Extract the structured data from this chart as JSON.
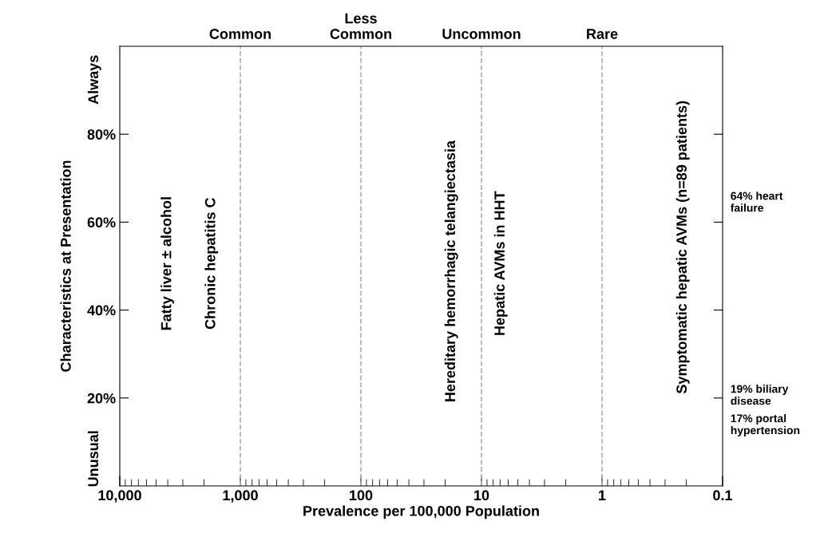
{
  "chart_data": {
    "type": "scatter",
    "xlabel": "Prevalence per 100,000 Population",
    "ylabel": "Characteristics at Presentation",
    "log": "x",
    "xlim": [
      10000,
      0.1
    ],
    "xticks": [
      {
        "value": 10000,
        "label": "10,000"
      },
      {
        "value": 1000,
        "label": "1,000"
      },
      100,
      10,
      1,
      0.1
    ],
    "ylim": [
      0,
      100
    ],
    "yticks": [
      {
        "value": 20,
        "label": "20%"
      },
      {
        "value": 40,
        "label": "40%"
      },
      {
        "value": 60,
        "label": "60%"
      },
      {
        "value": 80,
        "label": "80%"
      }
    ],
    "ref_lines": [
      {
        "axis": "x",
        "value": 1000,
        "label": "Common",
        "color": "#b0b0b0",
        "line_style": "dashed"
      },
      {
        "axis": "x",
        "value": 100,
        "label": "Less\nCommon",
        "color": "#b0b0b0",
        "line_style": "dashed"
      },
      {
        "axis": "x",
        "value": 10,
        "label": "Uncommon",
        "color": "#b0b0b0",
        "line_style": "dashed"
      },
      {
        "axis": "x",
        "value": 1,
        "label": "Rare",
        "color": "#b0b0b0",
        "line_style": "dashed"
      }
    ],
    "annotations": [
      "Always",
      "Unusual",
      "Fatty liver ± alcohol",
      "Chronic hepatitis C",
      "Hereditary hemorrhagic telangiectasia",
      "Hepatic AVMs in HHT",
      "Symptomatic hepatic AVMs (n=89 patients)",
      "64% heart\nfailure",
      "19% biliary\ndisease",
      "17% portal\nhypertension"
    ]
  }
}
